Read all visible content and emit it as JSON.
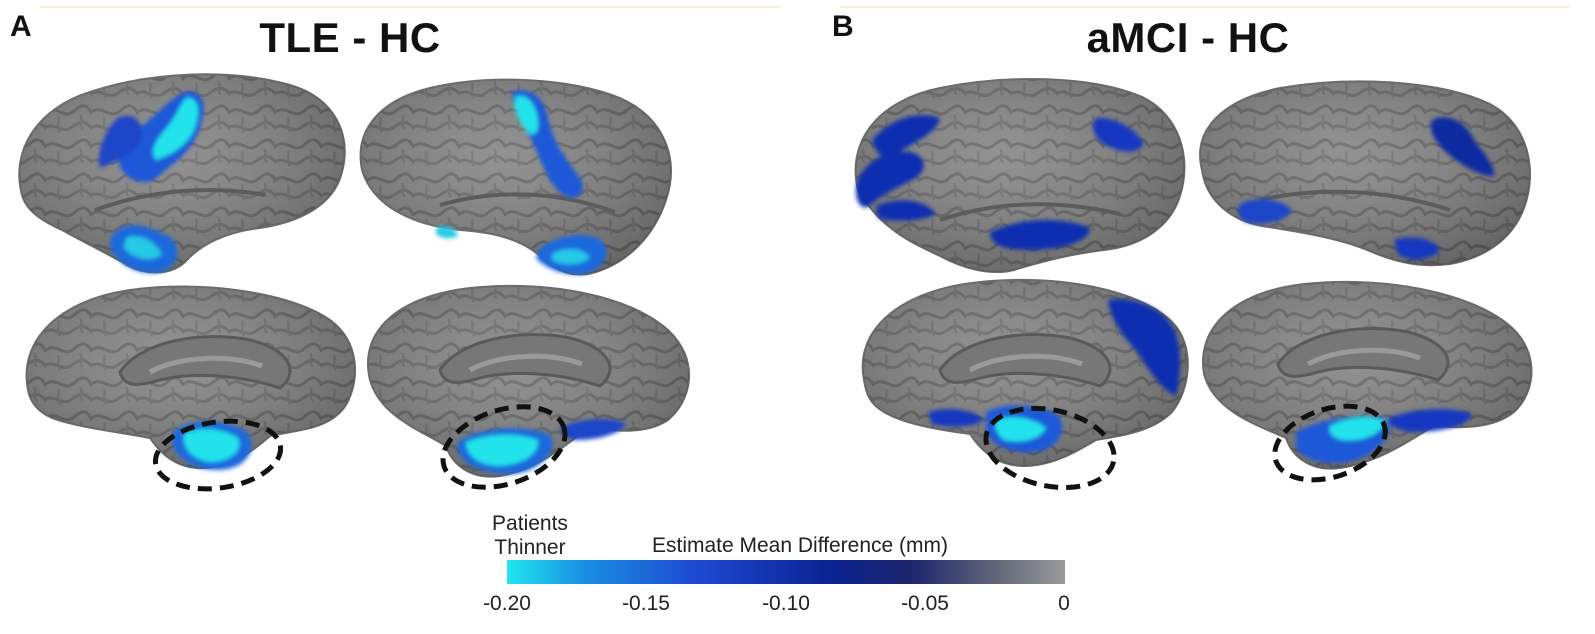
{
  "panels": [
    {
      "letter": "A",
      "title": "TLE - HC"
    },
    {
      "letter": "B",
      "title": "aMCI - HC"
    }
  ],
  "legend": {
    "side_label_line1": "Patients",
    "side_label_line2": "Thinner",
    "title": "Estimate Mean Difference (mm)",
    "ticks": [
      "-0.20",
      "-0.15",
      "-0.10",
      "-0.05",
      "0"
    ]
  },
  "colors": {
    "cortex": "#838383",
    "sulcus": "#626262",
    "strong_thinning": "#22e3ec",
    "moderate_thinning": "#1f58d8",
    "mild_thinning": "#0b2aa0",
    "roi_outline": "#111111"
  }
}
